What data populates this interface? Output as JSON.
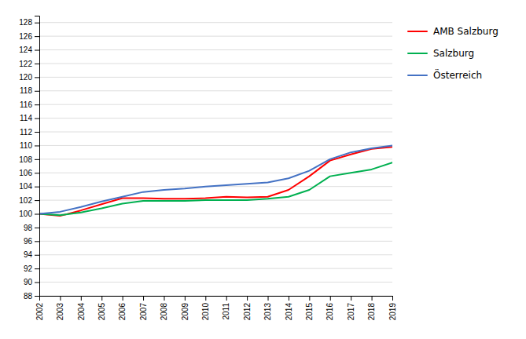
{
  "chart_data": {
    "type": "line",
    "x": [
      2002,
      2003,
      2004,
      2005,
      2006,
      2007,
      2008,
      2009,
      2010,
      2011,
      2012,
      2013,
      2014,
      2015,
      2016,
      2017,
      2018,
      2019
    ],
    "series": [
      {
        "name": "AMB Salzburg",
        "color": "#ff0000",
        "values": [
          100.0,
          99.7,
          100.5,
          101.4,
          102.3,
          102.3,
          102.2,
          102.2,
          102.3,
          102.5,
          102.4,
          102.5,
          103.5,
          105.5,
          107.8,
          108.7,
          109.5,
          109.8
        ]
      },
      {
        "name": "Salzburg",
        "color": "#00b050",
        "values": [
          100.0,
          99.8,
          100.2,
          100.8,
          101.5,
          101.9,
          101.9,
          101.9,
          102.0,
          102.0,
          102.0,
          102.2,
          102.5,
          103.5,
          105.5,
          106.0,
          106.5,
          107.5
        ]
      },
      {
        "name": "Österreich",
        "color": "#4472c4",
        "values": [
          100.0,
          100.3,
          101.0,
          101.8,
          102.5,
          103.2,
          103.5,
          103.7,
          104.0,
          104.2,
          104.4,
          104.6,
          105.2,
          106.3,
          108.0,
          109.0,
          109.6,
          110.0
        ]
      }
    ],
    "xlim": [
      2002,
      2019
    ],
    "xticks": [
      2002,
      2003,
      2004,
      2005,
      2006,
      2007,
      2008,
      2009,
      2010,
      2011,
      2012,
      2013,
      2014,
      2015,
      2016,
      2017,
      2018,
      2019
    ],
    "ylim": [
      88,
      129
    ],
    "yticks": [
      88,
      90,
      92,
      94,
      96,
      98,
      100,
      102,
      104,
      106,
      108,
      110,
      112,
      114,
      116,
      118,
      120,
      122,
      124,
      126,
      128
    ],
    "grid": "y",
    "legend": "right"
  }
}
